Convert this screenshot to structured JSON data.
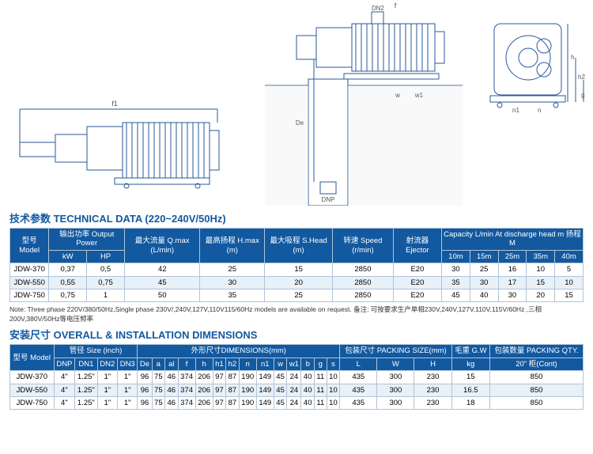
{
  "tech": {
    "title": "技术参数 TECHNICAL DATA (220~240V/50Hz)",
    "headers": {
      "model": "型号\nModel",
      "output_power": "输出功率\nOutput Power",
      "kw": "kW",
      "hp": "HP",
      "qmax": "最大流量\nQ.max\n(L/min)",
      "hmax": "最高扬程\nH.max\n(m)",
      "shead": "最大吸程\nS.Head\n(m)",
      "speed": "转速\nSpeed\n(r/min)",
      "ejector": "射流器\nEjector",
      "capacity": "Capacity L/min At discharge head m 扬程 M",
      "c10": "10m",
      "c15": "15m",
      "c25": "25m",
      "c35": "35m",
      "c40": "40m"
    },
    "rows": [
      {
        "model": "JDW-370",
        "kw": "0,37",
        "hp": "0,5",
        "qmax": "42",
        "hmax": "25",
        "shead": "15",
        "speed": "2850",
        "ejector": "E20",
        "c10": "30",
        "c15": "25",
        "c25": "16",
        "c35": "10",
        "c40": "5"
      },
      {
        "model": "JDW-550",
        "kw": "0,55",
        "hp": "0,75",
        "qmax": "45",
        "hmax": "30",
        "shead": "20",
        "speed": "2850",
        "ejector": "E20",
        "c10": "35",
        "c15": "30",
        "c25": "17",
        "c35": "15",
        "c40": "10"
      },
      {
        "model": "JDW-750",
        "kw": "0,75",
        "hp": "1",
        "qmax": "50",
        "hmax": "35",
        "shead": "25",
        "speed": "2850",
        "ejector": "E20",
        "c10": "45",
        "c15": "40",
        "c25": "30",
        "c35": "20",
        "c40": "15"
      }
    ],
    "note": "Note: Three phase 220V/380/50Hz,Single phase 230V/,240V,127V,110V115/60Hz models are available on request. 备注: 可按要求生产单相230V,240V,127V,110V,115V/60Hz ,三相200V,380V/50Hz等电压频率"
  },
  "dims": {
    "title": "安装尺寸 OVERALL & INSTALLATION DIMENSIONS",
    "headers": {
      "model": "型号\nModel",
      "size": "管径\nSize (inch)",
      "dnp": "DNP",
      "dn1": "DN1",
      "dn2": "DN2",
      "dn3": "DN3",
      "dimensions": "外形尺寸DIMENSIONS(mm)",
      "de": "De",
      "a": "a",
      "al": "al",
      "f": "f",
      "h": "h",
      "h1": "h1",
      "h2": "h2",
      "n": "n",
      "n1": "n1",
      "w": "w",
      "w1": "w1",
      "b": "b",
      "g": "g",
      "s": "s",
      "packing_size": "包装尺寸\nPACKING SIZE(mm)",
      "L": "L",
      "W": "W",
      "H": "H",
      "gw": "毛重\nG.W",
      "kg": "kg",
      "packing_qty": "包装数量\nPACKING QTY.",
      "cont": "20\" 柜(Cont)"
    },
    "rows": [
      {
        "model": "JDW-370",
        "dnp": "4\"",
        "dn1": "1.25\"",
        "dn2": "1\"",
        "dn3": "1\"",
        "de": "96",
        "a": "75",
        "al": "46",
        "f": "374",
        "h": "206",
        "h1": "97",
        "h2": "87",
        "n": "190",
        "n1": "149",
        "w": "45",
        "w1": "24",
        "b": "40",
        "g": "11",
        "s": "10",
        "L": "435",
        "W": "300",
        "H": "230",
        "kg": "15",
        "cont": "850"
      },
      {
        "model": "JDW-550",
        "dnp": "4\"",
        "dn1": "1.25\"",
        "dn2": "1\"",
        "dn3": "1\"",
        "de": "96",
        "a": "75",
        "al": "46",
        "f": "374",
        "h": "206",
        "h1": "97",
        "h2": "87",
        "n": "190",
        "n1": "149",
        "w": "45",
        "w1": "24",
        "b": "40",
        "g": "11",
        "s": "10",
        "L": "435",
        "W": "300",
        "H": "230",
        "kg": "16.5",
        "cont": "850"
      },
      {
        "model": "JDW-750",
        "dnp": "4\"",
        "dn1": "1.25\"",
        "dn2": "1\"",
        "dn3": "1\"",
        "de": "96",
        "a": "75",
        "al": "46",
        "f": "374",
        "h": "206",
        "h1": "97",
        "h2": "87",
        "n": "190",
        "n1": "149",
        "w": "45",
        "w1": "24",
        "b": "40",
        "g": "11",
        "s": "10",
        "L": "435",
        "W": "300",
        "H": "230",
        "kg": "18",
        "cont": "850"
      }
    ]
  },
  "diagram_labels": {
    "f1": "f1",
    "f": "f",
    "dn2": "DN2",
    "dnp": "DNP",
    "de": "De",
    "h": "h",
    "h1": "h1",
    "h2": "h2",
    "g": "g",
    "n": "n",
    "n1": "n1",
    "w": "w",
    "w1": "w1"
  }
}
